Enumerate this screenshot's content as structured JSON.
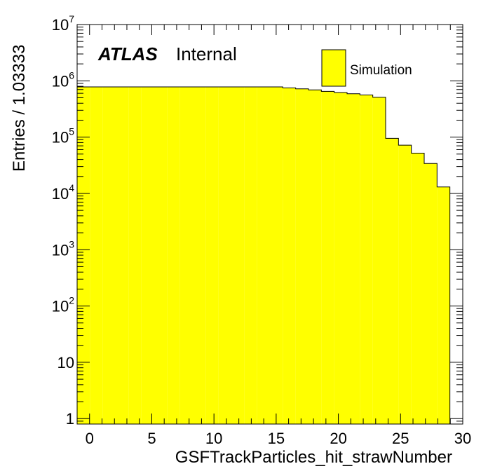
{
  "chart_data": {
    "type": "bar",
    "xlabel": "GSFTrackParticles_hit_strawNumber",
    "ylabel": "Entries / 1.03333",
    "label_bold": "ATLAS",
    "label_status": "Internal",
    "legend": [
      "Simulation"
    ],
    "legend_position": "top-right",
    "xlim": [
      -1,
      30
    ],
    "ylim": [
      0.8,
      10000000
    ],
    "y_scale": "log",
    "bin_width": 1.03333,
    "fill_color": "#ffff00",
    "line_color": "#000000",
    "x_ticks": [
      "0",
      "5",
      "10",
      "15",
      "20",
      "25",
      "30"
    ],
    "y_ticks": [
      {
        "base": "1",
        "exp": ""
      },
      {
        "base": "10",
        "exp": ""
      },
      {
        "base": "10",
        "exp": "2"
      },
      {
        "base": "10",
        "exp": "3"
      },
      {
        "base": "10",
        "exp": "4"
      },
      {
        "base": "10",
        "exp": "5"
      },
      {
        "base": "10",
        "exp": "6"
      },
      {
        "base": "10",
        "exp": "7"
      }
    ],
    "bin_edges": [
      -1.0,
      0.033,
      1.067,
      2.1,
      3.133,
      4.167,
      5.2,
      6.233,
      7.267,
      8.3,
      9.333,
      10.367,
      11.4,
      12.433,
      13.467,
      14.5,
      15.533,
      16.567,
      17.6,
      18.633,
      19.667,
      20.7,
      21.733,
      22.767,
      23.8,
      24.833,
      25.867,
      26.9,
      27.933,
      28.967,
      30.0
    ],
    "values": [
      780000,
      780000,
      780000,
      780000,
      780000,
      780000,
      780000,
      780000,
      780000,
      780000,
      780000,
      780000,
      780000,
      780000,
      780000,
      780000,
      750000,
      720000,
      690000,
      650000,
      620000,
      590000,
      560000,
      510000,
      95000,
      72000,
      52000,
      34000,
      13000,
      0
    ]
  }
}
